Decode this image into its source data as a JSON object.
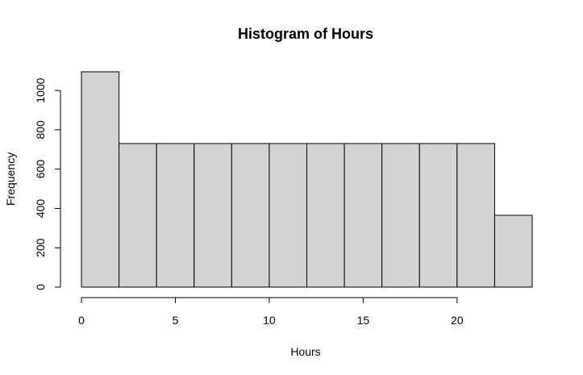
{
  "chart_data": {
    "type": "bar",
    "title": "Histogram of Hours",
    "xlabel": "Hours",
    "ylabel": "Frequency",
    "bin_edges": [
      0,
      2,
      4,
      6,
      8,
      10,
      12,
      14,
      16,
      18,
      20,
      22,
      24
    ],
    "values": [
      1095,
      730,
      730,
      730,
      730,
      730,
      730,
      730,
      730,
      730,
      730,
      365
    ],
    "xticks": [
      0,
      5,
      10,
      15,
      20
    ],
    "yticks": [
      0,
      200,
      400,
      600,
      800,
      1000
    ],
    "xlim": [
      0,
      24
    ],
    "ylim": [
      0,
      1095
    ],
    "grid": false,
    "bar_fill": "#d3d3d3",
    "bar_stroke": "#000000"
  }
}
